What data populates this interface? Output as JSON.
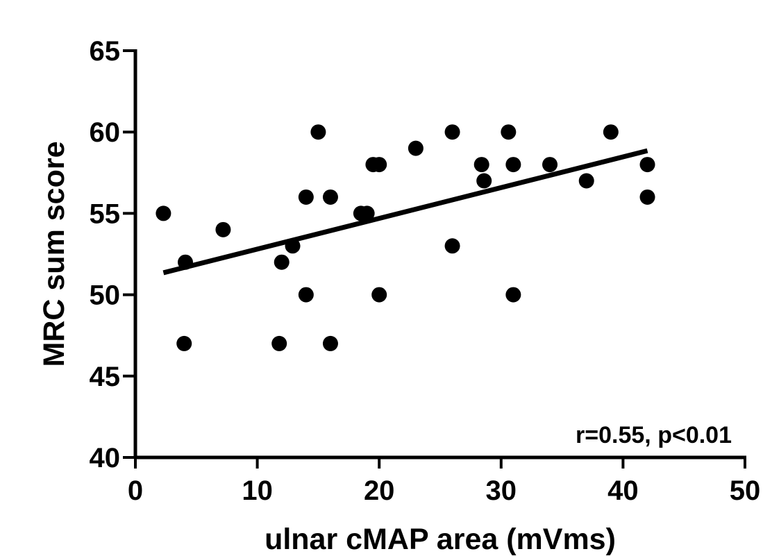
{
  "chart_data": {
    "type": "scatter",
    "xlabel": "ulnar cMAP area (mVms)",
    "ylabel": "MRC sum score",
    "xlim": [
      0,
      50
    ],
    "ylim": [
      40,
      65
    ],
    "x_ticks": [
      0,
      10,
      20,
      30,
      40,
      50
    ],
    "y_ticks": [
      40,
      45,
      50,
      55,
      60,
      65
    ],
    "grid": false,
    "annotation": "r=0.55, p<0.01",
    "colors": {
      "points": "#000000",
      "fit_line": "#000000",
      "axes": "#000000"
    },
    "points": [
      {
        "x": 2.3,
        "y": 55
      },
      {
        "x": 4.1,
        "y": 52
      },
      {
        "x": 4.0,
        "y": 47
      },
      {
        "x": 7.2,
        "y": 54
      },
      {
        "x": 11.8,
        "y": 47
      },
      {
        "x": 12.0,
        "y": 52
      },
      {
        "x": 12.9,
        "y": 53
      },
      {
        "x": 14.0,
        "y": 56
      },
      {
        "x": 14.0,
        "y": 50
      },
      {
        "x": 15.0,
        "y": 60
      },
      {
        "x": 16.0,
        "y": 56
      },
      {
        "x": 16.0,
        "y": 47
      },
      {
        "x": 18.5,
        "y": 55
      },
      {
        "x": 19.0,
        "y": 55
      },
      {
        "x": 19.5,
        "y": 58
      },
      {
        "x": 20.0,
        "y": 58
      },
      {
        "x": 20.0,
        "y": 50
      },
      {
        "x": 23.0,
        "y": 59
      },
      {
        "x": 26.0,
        "y": 60
      },
      {
        "x": 26.0,
        "y": 53
      },
      {
        "x": 28.4,
        "y": 58
      },
      {
        "x": 28.6,
        "y": 57
      },
      {
        "x": 30.6,
        "y": 60
      },
      {
        "x": 31.0,
        "y": 58
      },
      {
        "x": 31.0,
        "y": 50
      },
      {
        "x": 34.0,
        "y": 58
      },
      {
        "x": 37.0,
        "y": 57
      },
      {
        "x": 39.0,
        "y": 60
      },
      {
        "x": 42.0,
        "y": 58
      },
      {
        "x": 42.0,
        "y": 56
      }
    ],
    "regression_line": {
      "x": [
        2.3,
        42.0
      ],
      "y": [
        51.35,
        58.85
      ]
    }
  }
}
